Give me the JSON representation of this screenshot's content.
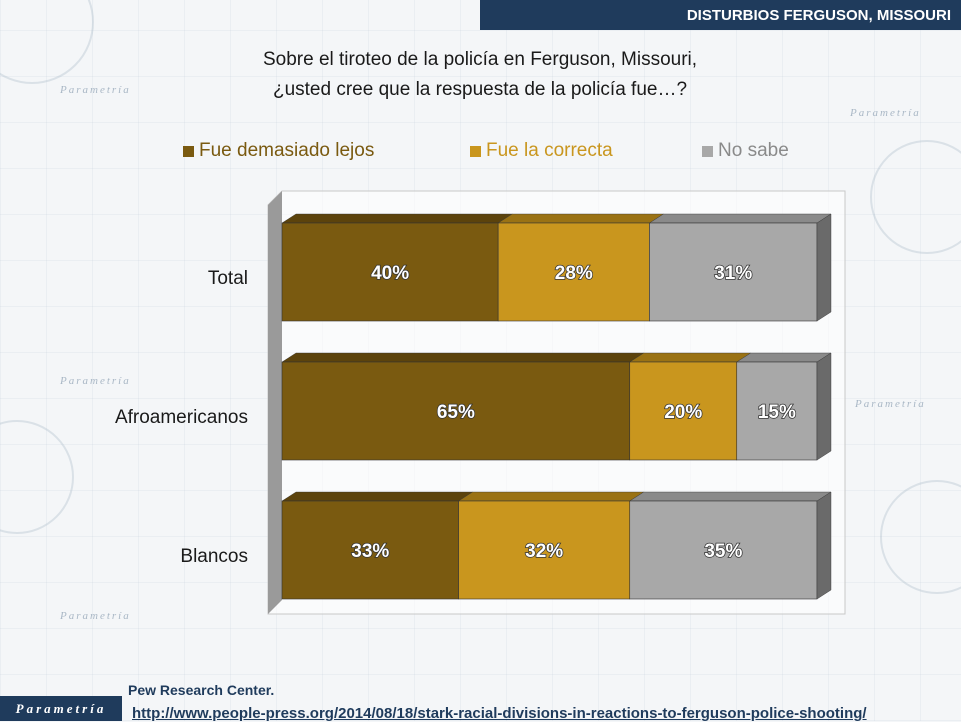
{
  "header": {
    "title": "DISTURBIOS FERGUSON, MISSOURI"
  },
  "question": {
    "line1": "Sobre el tiroteo de la policía en Ferguson, Missouri,",
    "line2": "¿usted cree que la respuesta de la policía fue…?"
  },
  "watermark": {
    "text": "Parametría"
  },
  "logo": {
    "text": "Parametría"
  },
  "source": {
    "org": "Pew Research Center.",
    "url": "http://www.people-press.org/2014/08/18/stark-racial-divisions-in-reactions-to-ferguson-police-shooting/"
  },
  "colors": {
    "too_far": "#7a5a10",
    "right": "#c9961e",
    "dont_know": "#a8a8a8",
    "header": "#1f3b5c"
  },
  "chart_data": {
    "type": "bar",
    "orientation": "horizontal",
    "stacked": true,
    "three_d": true,
    "categories": [
      "Total",
      "Afroamericanos",
      "Blancos"
    ],
    "series": [
      {
        "name": "Fue demasiado lejos",
        "values": [
          40,
          65,
          33
        ],
        "labels": [
          "40%",
          "65%",
          "33%"
        ]
      },
      {
        "name": "Fue la correcta",
        "values": [
          28,
          20,
          32
        ],
        "labels": [
          "28%",
          "20%",
          "32%"
        ]
      },
      {
        "name": "No sabe",
        "values": [
          31,
          15,
          35
        ],
        "labels": [
          "31%",
          "15%",
          "35%"
        ]
      }
    ],
    "legend_position": "top",
    "xlim": [
      0,
      100
    ]
  }
}
